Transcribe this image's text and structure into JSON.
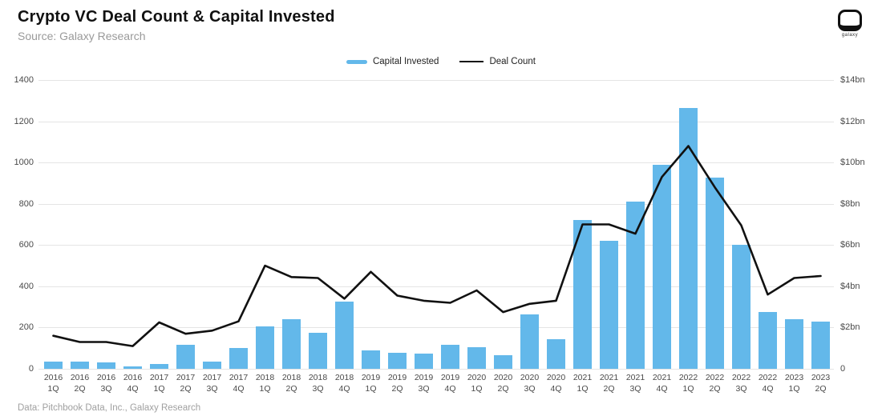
{
  "header": {
    "title": "Crypto VC Deal Count & Capital Invested",
    "subtitle": "Source: Galaxy Research",
    "logo_word": "galaxy"
  },
  "legend": {
    "capital_invested_label": "Capital Invested",
    "deal_count_label": "Deal Count"
  },
  "footer": {
    "credit": "Data: Pitchbook Data, Inc., Galaxy Research"
  },
  "colors": {
    "bar": "#63b8ea",
    "line": "#111111",
    "grid": "#e4e4e4",
    "axis_text": "#4a4a4a",
    "subtitle_text": "#9a9a9a"
  },
  "chart_data": {
    "type": "bar",
    "note": "combo chart: bars = Capital Invested (right axis, $bn), line = Deal Count (left axis)",
    "categories": [
      "2016 1Q",
      "2016 2Q",
      "2016 3Q",
      "2016 4Q",
      "2017 1Q",
      "2017 2Q",
      "2017 3Q",
      "2017 4Q",
      "2018 1Q",
      "2018 2Q",
      "2018 3Q",
      "2018 4Q",
      "2019 1Q",
      "2019 2Q",
      "2019 3Q",
      "2019 4Q",
      "2020 1Q",
      "2020 2Q",
      "2020 3Q",
      "2020 4Q",
      "2021 1Q",
      "2021 2Q",
      "2021 3Q",
      "2021 4Q",
      "2022 1Q",
      "2022 2Q",
      "2022 3Q",
      "2022 4Q",
      "2023 1Q",
      "2023 2Q"
    ],
    "series": [
      {
        "name": "Capital Invested",
        "type": "bar",
        "axis": "right",
        "unit": "$bn",
        "values": [
          0.35,
          0.35,
          0.32,
          0.12,
          0.22,
          1.15,
          0.35,
          1.0,
          2.05,
          2.4,
          1.75,
          3.25,
          0.9,
          0.78,
          0.75,
          1.15,
          1.05,
          0.65,
          2.65,
          1.45,
          7.2,
          6.2,
          8.1,
          9.9,
          12.65,
          9.25,
          6.0,
          2.75,
          2.4,
          2.3
        ]
      },
      {
        "name": "Deal Count",
        "type": "line",
        "axis": "left",
        "values": [
          160,
          130,
          130,
          110,
          225,
          170,
          185,
          230,
          500,
          445,
          440,
          340,
          470,
          355,
          330,
          320,
          380,
          275,
          315,
          330,
          700,
          700,
          655,
          930,
          1080,
          880,
          695,
          360,
          440,
          450
        ]
      }
    ],
    "left_axis": {
      "title": "",
      "ticks": [
        0,
        200,
        400,
        600,
        800,
        1000,
        1200,
        1400
      ],
      "range": [
        0,
        1400
      ]
    },
    "right_axis": {
      "title": "",
      "tick_labels": [
        "0",
        "$2bn",
        "$4bn",
        "$6bn",
        "$8bn",
        "$10bn",
        "$12bn",
        "$14bn"
      ],
      "range_bn": [
        0,
        14
      ]
    },
    "grid": true,
    "legend_position": "top-center"
  }
}
